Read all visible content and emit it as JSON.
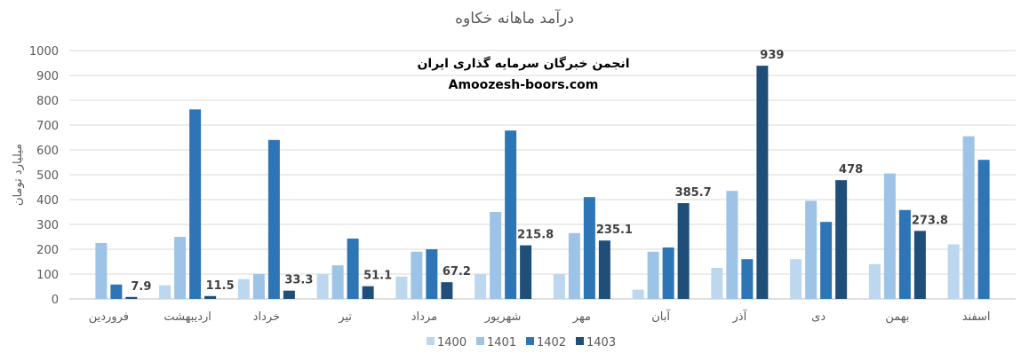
{
  "watermark": {
    "line1": "انجمن خبرگان سرمایه گذاری ایران",
    "line2": "Amoozesh-boors.com"
  },
  "chart_data": {
    "type": "bar",
    "title": "درآمد ماهانه خکاوه",
    "xlabel": "",
    "ylabel": "میلیارد تومان",
    "ylim": [
      0,
      1000
    ],
    "yticks": [
      0,
      100,
      200,
      300,
      400,
      500,
      600,
      700,
      800,
      900,
      1000
    ],
    "grid": true,
    "legend_position": "bottom",
    "categories": [
      "فروردین",
      "اردیبهشت",
      "خرداد",
      "تیر",
      "مرداد",
      "شهریور",
      "مهر",
      "آبان",
      "آذر",
      "دی",
      "بهمن",
      "اسفند"
    ],
    "series": [
      {
        "name": "1400",
        "color": "#bdd7ee",
        "values": [
          0,
          55,
          80,
          100,
          90,
          100,
          100,
          37,
          125,
          160,
          140,
          220
        ]
      },
      {
        "name": "1401",
        "color": "#9dc3e6",
        "values": [
          225,
          250,
          100,
          135,
          190,
          350,
          265,
          190,
          435,
          395,
          505,
          655
        ]
      },
      {
        "name": "1402",
        "color": "#2e75b6",
        "values": [
          58,
          763,
          640,
          243,
          200,
          678,
          410,
          207,
          160,
          310,
          358,
          560
        ]
      },
      {
        "name": "1403",
        "color": "#1f4e79",
        "values": [
          7.9,
          11.5,
          33.3,
          51.1,
          67.2,
          215.8,
          235.1,
          385.7,
          939,
          478,
          273.8,
          null
        ]
      }
    ],
    "data_labels": {
      "series": "1403",
      "labels": [
        "7.9",
        "11.5",
        "33.3",
        "51.1",
        "67.2",
        "215.8",
        "235.1",
        "385.7",
        "939",
        "478",
        "273.8",
        ""
      ]
    }
  }
}
